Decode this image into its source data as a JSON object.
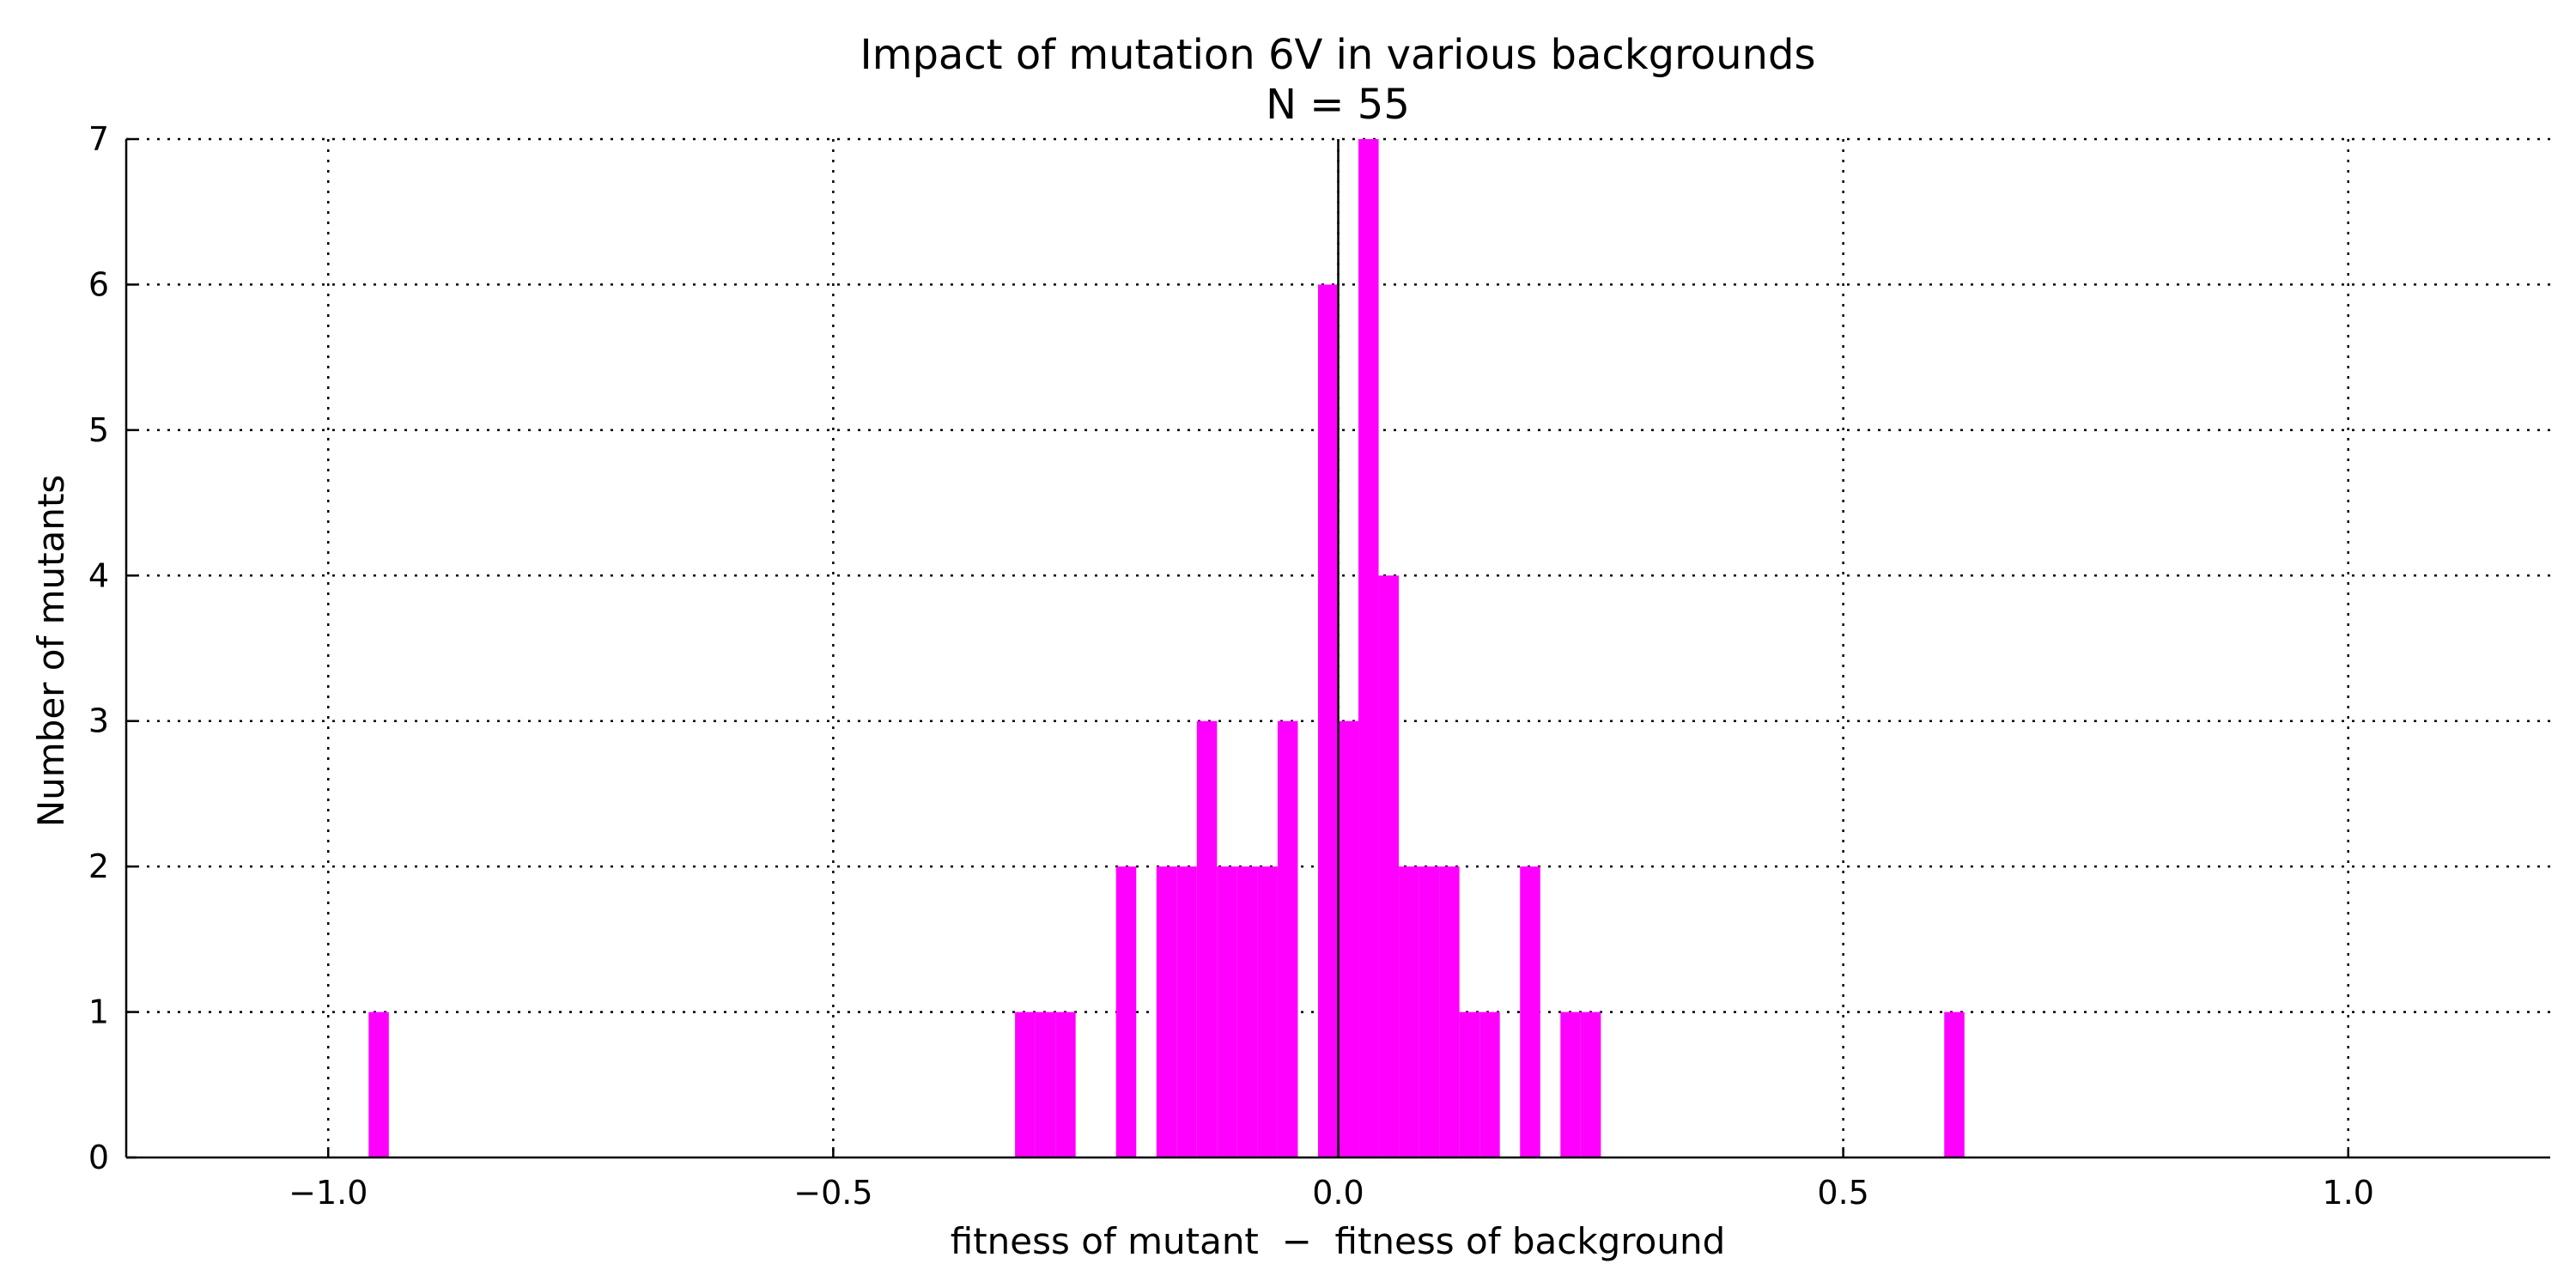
{
  "chart_data": {
    "type": "bar",
    "title": "Impact of mutation 6V in various backgrounds",
    "subtitle": "N = 55",
    "xlabel": "fitness of mutant  −  fitness of background",
    "ylabel": "Number of mutants",
    "xlim": [
      -1.2,
      1.2
    ],
    "ylim": [
      0,
      7
    ],
    "x_ticks": [
      -1.0,
      -0.5,
      0.0,
      0.5,
      1.0
    ],
    "x_tick_labels": [
      "−1.0",
      "−0.5",
      "0.0",
      "0.5",
      "1.0"
    ],
    "y_ticks": [
      0,
      1,
      2,
      3,
      4,
      5,
      6,
      7
    ],
    "y_tick_labels": [
      "0",
      "1",
      "2",
      "3",
      "4",
      "5",
      "6",
      "7"
    ],
    "grid": true,
    "bar_color": "#ff00ff",
    "bin_width": 0.02,
    "bars": [
      {
        "x": -0.96,
        "value": 1
      },
      {
        "x": -0.32,
        "value": 1
      },
      {
        "x": -0.3,
        "value": 1
      },
      {
        "x": -0.28,
        "value": 1
      },
      {
        "x": -0.22,
        "value": 2
      },
      {
        "x": -0.18,
        "value": 2
      },
      {
        "x": -0.16,
        "value": 2
      },
      {
        "x": -0.14,
        "value": 3
      },
      {
        "x": -0.12,
        "value": 2
      },
      {
        "x": -0.1,
        "value": 2
      },
      {
        "x": -0.08,
        "value": 2
      },
      {
        "x": -0.06,
        "value": 3
      },
      {
        "x": -0.02,
        "value": 6
      },
      {
        "x": 0.0,
        "value": 3
      },
      {
        "x": 0.02,
        "value": 7
      },
      {
        "x": 0.04,
        "value": 4
      },
      {
        "x": 0.06,
        "value": 2
      },
      {
        "x": 0.08,
        "value": 2
      },
      {
        "x": 0.1,
        "value": 2
      },
      {
        "x": 0.12,
        "value": 1
      },
      {
        "x": 0.14,
        "value": 1
      },
      {
        "x": 0.18,
        "value": 2
      },
      {
        "x": 0.22,
        "value": 1
      },
      {
        "x": 0.24,
        "value": 1
      },
      {
        "x": 0.6,
        "value": 1
      }
    ]
  }
}
